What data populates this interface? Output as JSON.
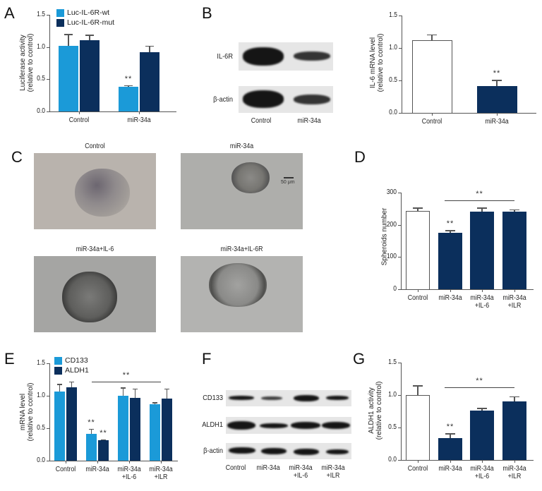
{
  "panels": {
    "A": {
      "letter": "A"
    },
    "B": {
      "letter": "B"
    },
    "C": {
      "letter": "C"
    },
    "D": {
      "letter": "D"
    },
    "E": {
      "letter": "E"
    },
    "F": {
      "letter": "F"
    },
    "G": {
      "letter": "G"
    }
  },
  "colors": {
    "light_blue": "#1b9ad8",
    "dark_blue": "#0b2f5c",
    "white_bar": "#ffffff",
    "axis": "#555555"
  },
  "western_blot_B": {
    "rows": [
      "IL-6R",
      "β-actin"
    ],
    "lanes": [
      "Control",
      "miR-34a"
    ]
  },
  "microscopy_C": {
    "images": [
      {
        "title": "Control"
      },
      {
        "title": "miR-34a",
        "scale_bar": "50 μm"
      },
      {
        "title": "miR-34a+IL-6"
      },
      {
        "title": "miR-34a+IL-6R"
      }
    ]
  },
  "western_blot_F": {
    "rows": [
      "CD133",
      "ALDH1",
      "β-actin"
    ],
    "lanes": [
      "Control",
      "miR-34a",
      "miR-34a\n+IL-6",
      "miR-34a\n+ILR"
    ]
  },
  "chart_data": [
    {
      "id": "A",
      "type": "bar",
      "title": "",
      "xlabel": "",
      "ylabel": "Luciferase activity\n(relative to control)",
      "categories": [
        "Control",
        "miR-34a"
      ],
      "series": [
        {
          "name": "Luc-IL-6R-wt",
          "color": "#1b9ad8",
          "values": [
            1.02,
            0.38
          ],
          "errors": [
            0.18,
            0.03
          ],
          "significance": [
            "",
            "**"
          ]
        },
        {
          "name": "Luc-IL-6R-mut",
          "color": "#0b2f5c",
          "values": [
            1.11,
            0.92
          ],
          "errors": [
            0.08,
            0.1
          ],
          "significance": [
            "",
            ""
          ]
        }
      ],
      "yticks": [
        "0.0",
        "0.5",
        "1.0",
        "1.5"
      ],
      "ylim": [
        0,
        1.5
      ],
      "legend_position": "top-left",
      "grid": false
    },
    {
      "id": "B",
      "type": "bar",
      "title": "",
      "xlabel": "",
      "ylabel": "IL-6 mRNA level\n(relative to control)",
      "categories": [
        "Control",
        "miR-34a"
      ],
      "series": [
        {
          "name": "IL-6 mRNA",
          "colors": [
            "#ffffff",
            "#0b2f5c"
          ],
          "values": [
            1.12,
            0.41
          ],
          "errors": [
            0.09,
            0.1
          ],
          "significance": [
            "",
            "**"
          ]
        }
      ],
      "yticks": [
        "0.0",
        "0.5",
        "1.0",
        "1.5"
      ],
      "ylim": [
        0,
        1.5
      ],
      "grid": false
    },
    {
      "id": "D",
      "type": "bar",
      "title": "",
      "xlabel": "",
      "ylabel": "Spheroids number",
      "categories": [
        "Control",
        "miR-34a",
        "miR-34a\n+IL-6",
        "miR-34a\n+ILR"
      ],
      "series": [
        {
          "name": "Spheroids",
          "colors": [
            "#ffffff",
            "#0b2f5c",
            "#0b2f5c",
            "#0b2f5c"
          ],
          "values": [
            243,
            176,
            240,
            240
          ],
          "errors": [
            10,
            7,
            13,
            8
          ],
          "significance": [
            "",
            "**",
            "",
            ""
          ]
        }
      ],
      "group_significance": {
        "label": "**",
        "from": 1,
        "to": 3
      },
      "yticks": [
        "0",
        "100",
        "200",
        "300"
      ],
      "ylim": [
        0,
        300
      ],
      "grid": false
    },
    {
      "id": "E",
      "type": "bar",
      "title": "",
      "xlabel": "",
      "ylabel": "mRNA level\n(relative to control)",
      "categories": [
        "Control",
        "miR-34a",
        "miR-34a\n+IL-6",
        "miR-34a\n+ILR"
      ],
      "series": [
        {
          "name": "CD133",
          "color": "#1b9ad8",
          "values": [
            1.06,
            0.41,
            1.0,
            0.87
          ],
          "errors": [
            0.12,
            0.08,
            0.13,
            0.03
          ],
          "significance": [
            "",
            "**",
            "",
            ""
          ]
        },
        {
          "name": "ALDH1",
          "color": "#0b2f5c",
          "values": [
            1.13,
            0.32,
            0.97,
            0.96
          ],
          "errors": [
            0.09,
            0.01,
            0.14,
            0.15
          ],
          "significance": [
            "",
            "**",
            "",
            ""
          ]
        }
      ],
      "group_significance": {
        "label": "**",
        "from": 1,
        "to": 3
      },
      "yticks": [
        "0.0",
        "0.5",
        "1.0",
        "1.5"
      ],
      "ylim": [
        0,
        1.5
      ],
      "legend_position": "top-left",
      "grid": false
    },
    {
      "id": "G",
      "type": "bar",
      "title": "",
      "xlabel": "",
      "ylabel": "ALDH1 activity\n(relative to control)",
      "categories": [
        "Control",
        "miR-34a",
        "miR-34a\n+IL-6",
        "miR-34a\n+ILR"
      ],
      "series": [
        {
          "name": "ALDH1 activity",
          "colors": [
            "#ffffff",
            "#0b2f5c",
            "#0b2f5c",
            "#0b2f5c"
          ],
          "values": [
            1.0,
            0.34,
            0.76,
            0.9
          ],
          "errors": [
            0.15,
            0.07,
            0.04,
            0.08
          ],
          "significance": [
            "",
            "**",
            "",
            ""
          ]
        }
      ],
      "group_significance": {
        "label": "**",
        "from": 1,
        "to": 3
      },
      "yticks": [
        "0.0",
        "0.5",
        "1.0",
        "1.5"
      ],
      "ylim": [
        0,
        1.5
      ],
      "grid": false
    }
  ]
}
